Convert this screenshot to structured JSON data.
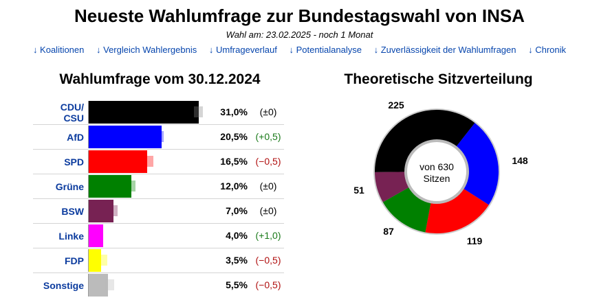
{
  "header": {
    "title": "Neueste Wahlumfrage zur Bundestagswahl von INSA",
    "subtitle": "Wahl am: 23.02.2025 - noch 1 Monat"
  },
  "nav": [
    {
      "label": "↓ Koalitionen"
    },
    {
      "label": "↓ Vergleich Wahlergebnis"
    },
    {
      "label": "↓ Umfrageverlauf"
    },
    {
      "label": "↓ Potentialanalyse"
    },
    {
      "label": "↓ Zuverlässigkeit der Wahlumfragen"
    },
    {
      "label": "↓ Chronik"
    }
  ],
  "chart_data": [
    {
      "type": "bar",
      "title": "Wahlumfrage vom 30.12.2024",
      "categories": [
        "CDU/\nCSU",
        "AfD",
        "SPD",
        "Grüne",
        "BSW",
        "Linke",
        "FDP",
        "Sonstige"
      ],
      "values": [
        31.0,
        20.5,
        16.5,
        12.0,
        7.0,
        4.0,
        3.5,
        5.5
      ],
      "value_labels": [
        "31,0%",
        "20,5%",
        "16,5%",
        "12,0%",
        "7,0%",
        "4,0%",
        "3,5%",
        "5,5%"
      ],
      "changes": [
        0,
        0.5,
        -0.5,
        0,
        0,
        1.0,
        -0.5,
        -0.5
      ],
      "change_labels": [
        "(±0)",
        "(+0,5)",
        "(−0,5)",
        "(±0)",
        "(±0)",
        "(+1,0)",
        "(−0,5)",
        "(−0,5)"
      ],
      "colors": [
        "#000000",
        "#0000ff",
        "#ff0000",
        "#008000",
        "#772253",
        "#ff00ff",
        "#ffff00",
        "#bbbbbb"
      ],
      "ylim": [
        0,
        34
      ]
    },
    {
      "type": "pie",
      "title": "Theoretische Sitzverteilung",
      "center_label": [
        "von 630",
        "Sitzen"
      ],
      "slices": [
        {
          "label": "CDU/CSU",
          "value": 225,
          "color": "#000000"
        },
        {
          "label": "AfD",
          "value": 148,
          "color": "#0000ff"
        },
        {
          "label": "SPD",
          "value": 119,
          "color": "#ff0000"
        },
        {
          "label": "Grüne",
          "value": 87,
          "color": "#008000"
        },
        {
          "label": "BSW",
          "value": 51,
          "color": "#772253"
        }
      ]
    }
  ]
}
